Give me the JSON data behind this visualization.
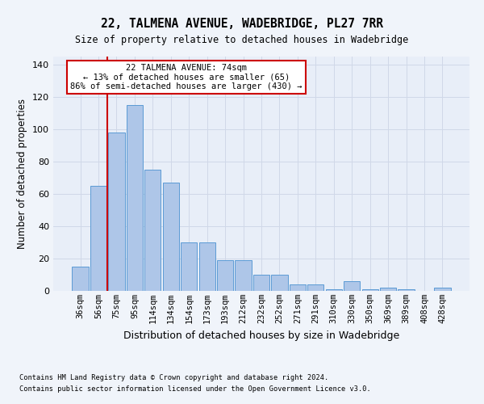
{
  "title": "22, TALMENA AVENUE, WADEBRIDGE, PL27 7RR",
  "subtitle": "Size of property relative to detached houses in Wadebridge",
  "xlabel": "Distribution of detached houses by size in Wadebridge",
  "ylabel": "Number of detached properties",
  "bin_labels": [
    "36sqm",
    "56sqm",
    "75sqm",
    "95sqm",
    "114sqm",
    "134sqm",
    "154sqm",
    "173sqm",
    "193sqm",
    "212sqm",
    "232sqm",
    "252sqm",
    "271sqm",
    "291sqm",
    "310sqm",
    "330sqm",
    "350sqm",
    "369sqm",
    "389sqm",
    "408sqm",
    "428sqm"
  ],
  "bar_values": [
    15,
    65,
    98,
    115,
    75,
    67,
    30,
    30,
    19,
    19,
    10,
    10,
    4,
    4,
    1,
    6,
    1,
    2,
    1,
    0,
    2
  ],
  "bar_color": "#aec6e8",
  "bar_edge_color": "#5b9bd5",
  "property_line_color": "#cc0000",
  "ylim": [
    0,
    145
  ],
  "yticks": [
    0,
    20,
    40,
    60,
    80,
    100,
    120,
    140
  ],
  "annotation_title": "22 TALMENA AVENUE: 74sqm",
  "annotation_line1": "← 13% of detached houses are smaller (65)",
  "annotation_line2": "86% of semi-detached houses are larger (430) →",
  "annotation_box_color": "#ffffff",
  "annotation_box_edge": "#cc0000",
  "footer_line1": "Contains HM Land Registry data © Crown copyright and database right 2024.",
  "footer_line2": "Contains public sector information licensed under the Open Government Licence v3.0.",
  "grid_color": "#d0d8e8",
  "background_color": "#e8eef8",
  "fig_background": "#f0f4fa"
}
